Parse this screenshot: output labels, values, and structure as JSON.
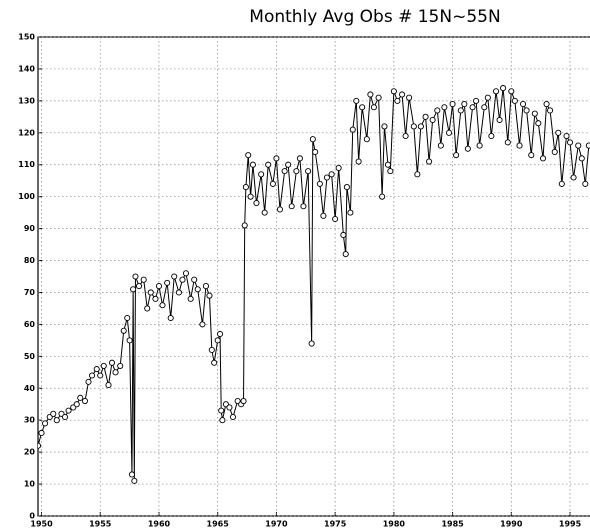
{
  "chart_data": {
    "type": "line",
    "title": "Monthly Avg Obs # 15N~55N",
    "x": [
      1949.7,
      1950.0,
      1950.3,
      1950.7,
      1951.0,
      1951.3,
      1951.7,
      1952.0,
      1952.3,
      1952.7,
      1953.0,
      1953.3,
      1953.7,
      1954.0,
      1954.3,
      1954.7,
      1955.0,
      1955.3,
      1955.7,
      1956.0,
      1956.3,
      1956.7,
      1957.0,
      1957.3,
      1957.5,
      1957.7,
      1957.8,
      1957.9,
      1958.0,
      1958.3,
      1958.7,
      1959.0,
      1959.3,
      1959.7,
      1960.0,
      1960.3,
      1960.7,
      1961.0,
      1961.3,
      1961.7,
      1962.0,
      1962.3,
      1962.7,
      1963.0,
      1963.3,
      1963.7,
      1964.0,
      1964.3,
      1964.5,
      1964.7,
      1965.0,
      1965.2,
      1965.3,
      1965.4,
      1965.7,
      1966.0,
      1966.3,
      1966.7,
      1967.0,
      1967.2,
      1967.3,
      1967.4,
      1967.6,
      1967.8,
      1968.0,
      1968.3,
      1968.7,
      1969.0,
      1969.3,
      1969.7,
      1970.0,
      1970.3,
      1970.7,
      1971.0,
      1971.3,
      1971.7,
      1972.0,
      1972.3,
      1972.7,
      1973.0,
      1973.1,
      1973.3,
      1973.7,
      1974.0,
      1974.3,
      1974.7,
      1975.0,
      1975.3,
      1975.7,
      1975.9,
      1976.0,
      1976.3,
      1976.5,
      1976.8,
      1977.0,
      1977.3,
      1977.7,
      1978.0,
      1978.3,
      1978.7,
      1979.0,
      1979.2,
      1979.5,
      1979.7,
      1980.0,
      1980.3,
      1980.7,
      1981.0,
      1981.3,
      1981.7,
      1982.0,
      1982.3,
      1982.7,
      1983.0,
      1983.3,
      1983.7,
      1984.0,
      1984.3,
      1984.7,
      1985.0,
      1985.3,
      1985.7,
      1986.0,
      1986.3,
      1986.7,
      1987.0,
      1987.3,
      1987.7,
      1988.0,
      1988.3,
      1988.7,
      1989.0,
      1989.3,
      1989.7,
      1990.0,
      1990.3,
      1990.7,
      1991.0,
      1991.3,
      1991.7,
      1992.0,
      1992.3,
      1992.7,
      1993.0,
      1993.3,
      1993.7,
      1994.0,
      1994.3,
      1994.7,
      1995.0,
      1995.3,
      1995.7,
      1996.0,
      1996.3,
      1996.6
    ],
    "series": [
      {
        "color": "#000000",
        "values": [
          22,
          26,
          29,
          31,
          32,
          30,
          32,
          31,
          33,
          34,
          35,
          37,
          36,
          42,
          44,
          46,
          44,
          47,
          41,
          48,
          45,
          47,
          58,
          62,
          55,
          13,
          71,
          11,
          75,
          72,
          74,
          65,
          70,
          68,
          72,
          66,
          73,
          62,
          75,
          70,
          74,
          76,
          68,
          74,
          71,
          60,
          72,
          69,
          52,
          48,
          55,
          57,
          33,
          30,
          35,
          34,
          31,
          36,
          35,
          36,
          91,
          103,
          113,
          100,
          110,
          98,
          107,
          95,
          110,
          104,
          112,
          96,
          108,
          110,
          97,
          108,
          112,
          97,
          108,
          54,
          118,
          114,
          104,
          94,
          106,
          107,
          93,
          109,
          88,
          82,
          103,
          95,
          121,
          130,
          111,
          128,
          118,
          132,
          128,
          131,
          100,
          122,
          110,
          108,
          133,
          130,
          132,
          119,
          131,
          122,
          107,
          122,
          125,
          111,
          124,
          127,
          116,
          128,
          120,
          129,
          113,
          127,
          129,
          115,
          128,
          130,
          116,
          128,
          131,
          119,
          133,
          124,
          134,
          117,
          133,
          130,
          116,
          129,
          127,
          113,
          126,
          123,
          112,
          129,
          127,
          114,
          120,
          104,
          119,
          117,
          106,
          116,
          112,
          104,
          116
        ]
      }
    ],
    "xlim": [
      1949.7,
      1996.7
    ],
    "ylim": [
      0,
      150
    ],
    "xticks": [
      1950,
      1955,
      1960,
      1965,
      1970,
      1975,
      1980,
      1985,
      1990,
      1995
    ],
    "yticks": [
      0,
      10,
      20,
      30,
      40,
      50,
      60,
      70,
      80,
      90,
      100,
      110,
      120,
      130,
      140,
      150
    ],
    "grid": true
  }
}
